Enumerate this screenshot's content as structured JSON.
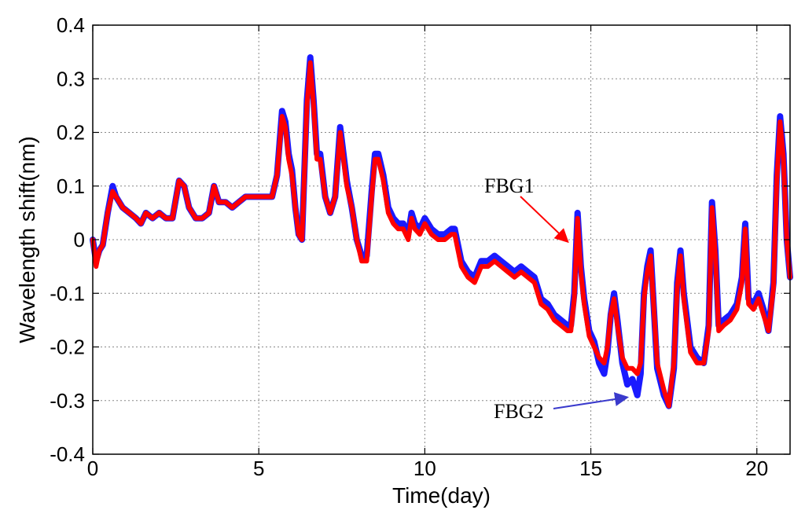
{
  "chart_data": {
    "type": "line",
    "title": "",
    "xlabel": "Time(day)",
    "ylabel": "Wavelength shift(nm)",
    "xlim": [
      0,
      21
    ],
    "ylim": [
      -0.4,
      0.4
    ],
    "xticks": [
      0,
      5,
      10,
      15,
      20
    ],
    "xtick_labels": [
      "0",
      "5",
      "10",
      "15",
      "20"
    ],
    "yticks": [
      -0.4,
      -0.3,
      -0.2,
      -0.1,
      0,
      0.1,
      0.2,
      0.3,
      0.4
    ],
    "ytick_labels": [
      "-0.4",
      "-0.3",
      "-0.2",
      "-0.1",
      "0",
      "0.1",
      "0.2",
      "0.3",
      "0.4"
    ],
    "grid": "dotted",
    "legend": "none",
    "colors": {
      "FBG1": "#ff0000",
      "FBG2": "#1a1aff"
    },
    "annotations": [
      {
        "text": "FBG1",
        "series": "FBG1",
        "target": [
          14.5,
          -0.01
        ],
        "placement": "upper-left"
      },
      {
        "text": "FBG2",
        "series": "FBG2",
        "target": [
          16.2,
          -0.285
        ],
        "placement": "lower-left"
      }
    ],
    "series": [
      {
        "name": "FBG2",
        "x": [
          0,
          0.1,
          0.2,
          0.3,
          0.45,
          0.6,
          0.7,
          0.9,
          1.1,
          1.3,
          1.45,
          1.6,
          1.8,
          2.0,
          2.2,
          2.4,
          2.6,
          2.75,
          2.9,
          3.1,
          3.3,
          3.5,
          3.65,
          3.8,
          4.0,
          4.2,
          4.4,
          4.6,
          4.8,
          5.0,
          5.2,
          5.4,
          5.55,
          5.7,
          5.8,
          5.9,
          6.0,
          6.1,
          6.2,
          6.3,
          6.45,
          6.55,
          6.65,
          6.75,
          6.85,
          7.0,
          7.15,
          7.3,
          7.45,
          7.55,
          7.65,
          7.8,
          7.95,
          8.1,
          8.25,
          8.4,
          8.5,
          8.6,
          8.75,
          8.9,
          9.05,
          9.2,
          9.35,
          9.5,
          9.6,
          9.7,
          9.85,
          10.0,
          10.2,
          10.4,
          10.6,
          10.8,
          10.9,
          11.1,
          11.3,
          11.5,
          11.7,
          11.9,
          12.1,
          12.3,
          12.5,
          12.7,
          12.9,
          13.1,
          13.3,
          13.5,
          13.7,
          13.9,
          14.1,
          14.3,
          14.4,
          14.5,
          14.6,
          14.7,
          14.8,
          14.95,
          15.1,
          15.25,
          15.4,
          15.5,
          15.6,
          15.7,
          15.8,
          15.95,
          16.1,
          16.25,
          16.4,
          16.5,
          16.6,
          16.7,
          16.8,
          17.0,
          17.2,
          17.35,
          17.5,
          17.6,
          17.7,
          17.8,
          18.0,
          18.2,
          18.4,
          18.55,
          18.65,
          18.75,
          18.85,
          19.0,
          19.2,
          19.4,
          19.55,
          19.65,
          19.75,
          19.9,
          20.05,
          20.2,
          20.35,
          20.5,
          20.6,
          20.7,
          20.8,
          20.9,
          21.0
        ],
        "y": [
          0.0,
          -0.04,
          -0.02,
          -0.01,
          0.05,
          0.1,
          0.08,
          0.06,
          0.05,
          0.04,
          0.03,
          0.05,
          0.04,
          0.05,
          0.04,
          0.04,
          0.11,
          0.1,
          0.06,
          0.04,
          0.04,
          0.05,
          0.1,
          0.07,
          0.07,
          0.06,
          0.07,
          0.08,
          0.08,
          0.08,
          0.08,
          0.08,
          0.12,
          0.24,
          0.22,
          0.16,
          0.13,
          0.06,
          0.01,
          0.0,
          0.26,
          0.34,
          0.26,
          0.16,
          0.16,
          0.08,
          0.05,
          0.08,
          0.21,
          0.16,
          0.11,
          0.06,
          0.0,
          -0.03,
          -0.03,
          0.09,
          0.16,
          0.16,
          0.12,
          0.06,
          0.04,
          0.03,
          0.03,
          0.01,
          0.05,
          0.03,
          0.02,
          0.04,
          0.02,
          0.01,
          0.01,
          0.02,
          0.02,
          -0.04,
          -0.06,
          -0.07,
          -0.04,
          -0.04,
          -0.03,
          -0.04,
          -0.05,
          -0.06,
          -0.05,
          -0.06,
          -0.07,
          -0.11,
          -0.12,
          -0.14,
          -0.15,
          -0.16,
          -0.16,
          -0.1,
          0.05,
          -0.05,
          -0.11,
          -0.17,
          -0.19,
          -0.23,
          -0.25,
          -0.21,
          -0.14,
          -0.1,
          -0.15,
          -0.23,
          -0.27,
          -0.26,
          -0.29,
          -0.25,
          -0.1,
          -0.05,
          -0.02,
          -0.24,
          -0.29,
          -0.31,
          -0.24,
          -0.08,
          -0.02,
          -0.1,
          -0.2,
          -0.22,
          -0.23,
          -0.16,
          0.07,
          -0.02,
          -0.16,
          -0.15,
          -0.14,
          -0.12,
          -0.07,
          0.03,
          -0.11,
          -0.12,
          -0.1,
          -0.13,
          -0.17,
          -0.08,
          0.12,
          0.23,
          0.16,
          0.0,
          -0.07
        ]
      },
      {
        "name": "FBG1",
        "x": [
          0,
          0.1,
          0.2,
          0.3,
          0.45,
          0.6,
          0.7,
          0.9,
          1.1,
          1.3,
          1.45,
          1.6,
          1.8,
          2.0,
          2.2,
          2.4,
          2.6,
          2.75,
          2.9,
          3.1,
          3.3,
          3.5,
          3.65,
          3.8,
          4.0,
          4.2,
          4.4,
          4.6,
          4.8,
          5.0,
          5.2,
          5.4,
          5.55,
          5.7,
          5.8,
          5.9,
          6.0,
          6.1,
          6.2,
          6.3,
          6.45,
          6.55,
          6.65,
          6.75,
          6.85,
          7.0,
          7.15,
          7.3,
          7.45,
          7.55,
          7.65,
          7.8,
          7.95,
          8.1,
          8.25,
          8.4,
          8.5,
          8.6,
          8.75,
          8.9,
          9.05,
          9.2,
          9.35,
          9.5,
          9.6,
          9.7,
          9.85,
          10.0,
          10.2,
          10.4,
          10.6,
          10.8,
          10.9,
          11.1,
          11.3,
          11.5,
          11.7,
          11.9,
          12.1,
          12.3,
          12.5,
          12.7,
          12.9,
          13.1,
          13.3,
          13.5,
          13.7,
          13.9,
          14.1,
          14.3,
          14.4,
          14.5,
          14.6,
          14.7,
          14.8,
          14.95,
          15.1,
          15.25,
          15.4,
          15.5,
          15.6,
          15.7,
          15.8,
          15.95,
          16.1,
          16.25,
          16.4,
          16.5,
          16.6,
          16.7,
          16.8,
          17.0,
          17.2,
          17.35,
          17.5,
          17.6,
          17.7,
          17.8,
          18.0,
          18.2,
          18.4,
          18.55,
          18.65,
          18.75,
          18.85,
          19.0,
          19.2,
          19.4,
          19.55,
          19.65,
          19.75,
          19.9,
          20.05,
          20.2,
          20.35,
          20.5,
          20.6,
          20.7,
          20.8,
          20.9,
          21.0
        ],
        "y": [
          0.0,
          -0.05,
          -0.02,
          -0.01,
          0.05,
          0.09,
          0.08,
          0.06,
          0.05,
          0.04,
          0.03,
          0.05,
          0.04,
          0.05,
          0.04,
          0.04,
          0.11,
          0.1,
          0.06,
          0.04,
          0.04,
          0.05,
          0.1,
          0.07,
          0.07,
          0.06,
          0.07,
          0.08,
          0.08,
          0.08,
          0.08,
          0.08,
          0.12,
          0.23,
          0.21,
          0.15,
          0.12,
          0.06,
          0.01,
          0.0,
          0.25,
          0.33,
          0.25,
          0.15,
          0.15,
          0.08,
          0.05,
          0.08,
          0.2,
          0.15,
          0.1,
          0.06,
          0.0,
          -0.04,
          -0.04,
          0.08,
          0.15,
          0.15,
          0.11,
          0.05,
          0.03,
          0.02,
          0.02,
          0.0,
          0.04,
          0.02,
          0.01,
          0.03,
          0.01,
          0.0,
          0.0,
          0.01,
          0.01,
          -0.05,
          -0.07,
          -0.08,
          -0.05,
          -0.05,
          -0.04,
          -0.05,
          -0.06,
          -0.07,
          -0.06,
          -0.07,
          -0.08,
          -0.12,
          -0.13,
          -0.15,
          -0.16,
          -0.17,
          -0.17,
          -0.11,
          0.04,
          -0.06,
          -0.12,
          -0.18,
          -0.2,
          -0.22,
          -0.23,
          -0.2,
          -0.14,
          -0.11,
          -0.16,
          -0.22,
          -0.24,
          -0.24,
          -0.25,
          -0.23,
          -0.11,
          -0.06,
          -0.03,
          -0.23,
          -0.28,
          -0.31,
          -0.23,
          -0.09,
          -0.03,
          -0.11,
          -0.21,
          -0.23,
          -0.23,
          -0.17,
          0.06,
          -0.03,
          -0.17,
          -0.16,
          -0.15,
          -0.13,
          -0.08,
          0.02,
          -0.12,
          -0.13,
          -0.11,
          -0.14,
          -0.17,
          -0.09,
          0.11,
          0.22,
          0.15,
          0.0,
          -0.07
        ]
      }
    ]
  }
}
